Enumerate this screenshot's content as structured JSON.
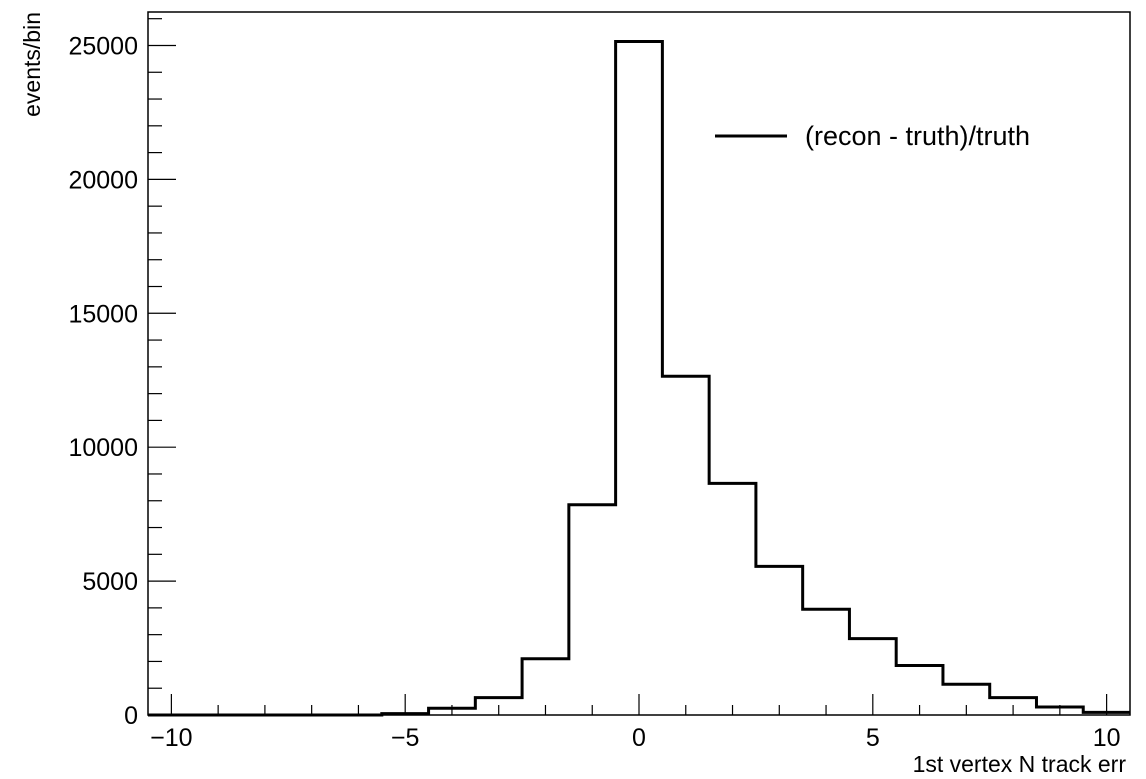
{
  "chart_data": {
    "type": "histogram",
    "title": "",
    "xlabel": "1st vertex N track err",
    "ylabel": "events/bin",
    "xlim": [
      -10.5,
      10.5
    ],
    "ylim": [
      0,
      26250
    ],
    "x_ticks": [
      -10,
      -5,
      0,
      5,
      10
    ],
    "x_tick_labels": [
      "−10",
      "−5",
      "0",
      "5",
      "10"
    ],
    "y_ticks": [
      0,
      5000,
      10000,
      15000,
      20000,
      25000
    ],
    "y_tick_labels": [
      "0",
      "5000",
      "10000",
      "15000",
      "20000",
      "25000"
    ],
    "bin_edges": [
      -10.5,
      -9.5,
      -8.5,
      -7.5,
      -6.5,
      -5.5,
      -4.5,
      -3.5,
      -2.5,
      -1.5,
      -0.5,
      0.5,
      1.5,
      2.5,
      3.5,
      4.5,
      5.5,
      6.5,
      7.5,
      8.5,
      9.5,
      10.5
    ],
    "series": [
      {
        "name": "(recon - truth)/truth",
        "values": [
          0,
          0,
          0,
          0,
          0,
          50,
          250,
          650,
          2100,
          7850,
          25150,
          12650,
          8650,
          5550,
          3950,
          2850,
          1850,
          1150,
          650,
          300,
          100
        ]
      }
    ],
    "legend_position": "top-right",
    "grid": false
  }
}
